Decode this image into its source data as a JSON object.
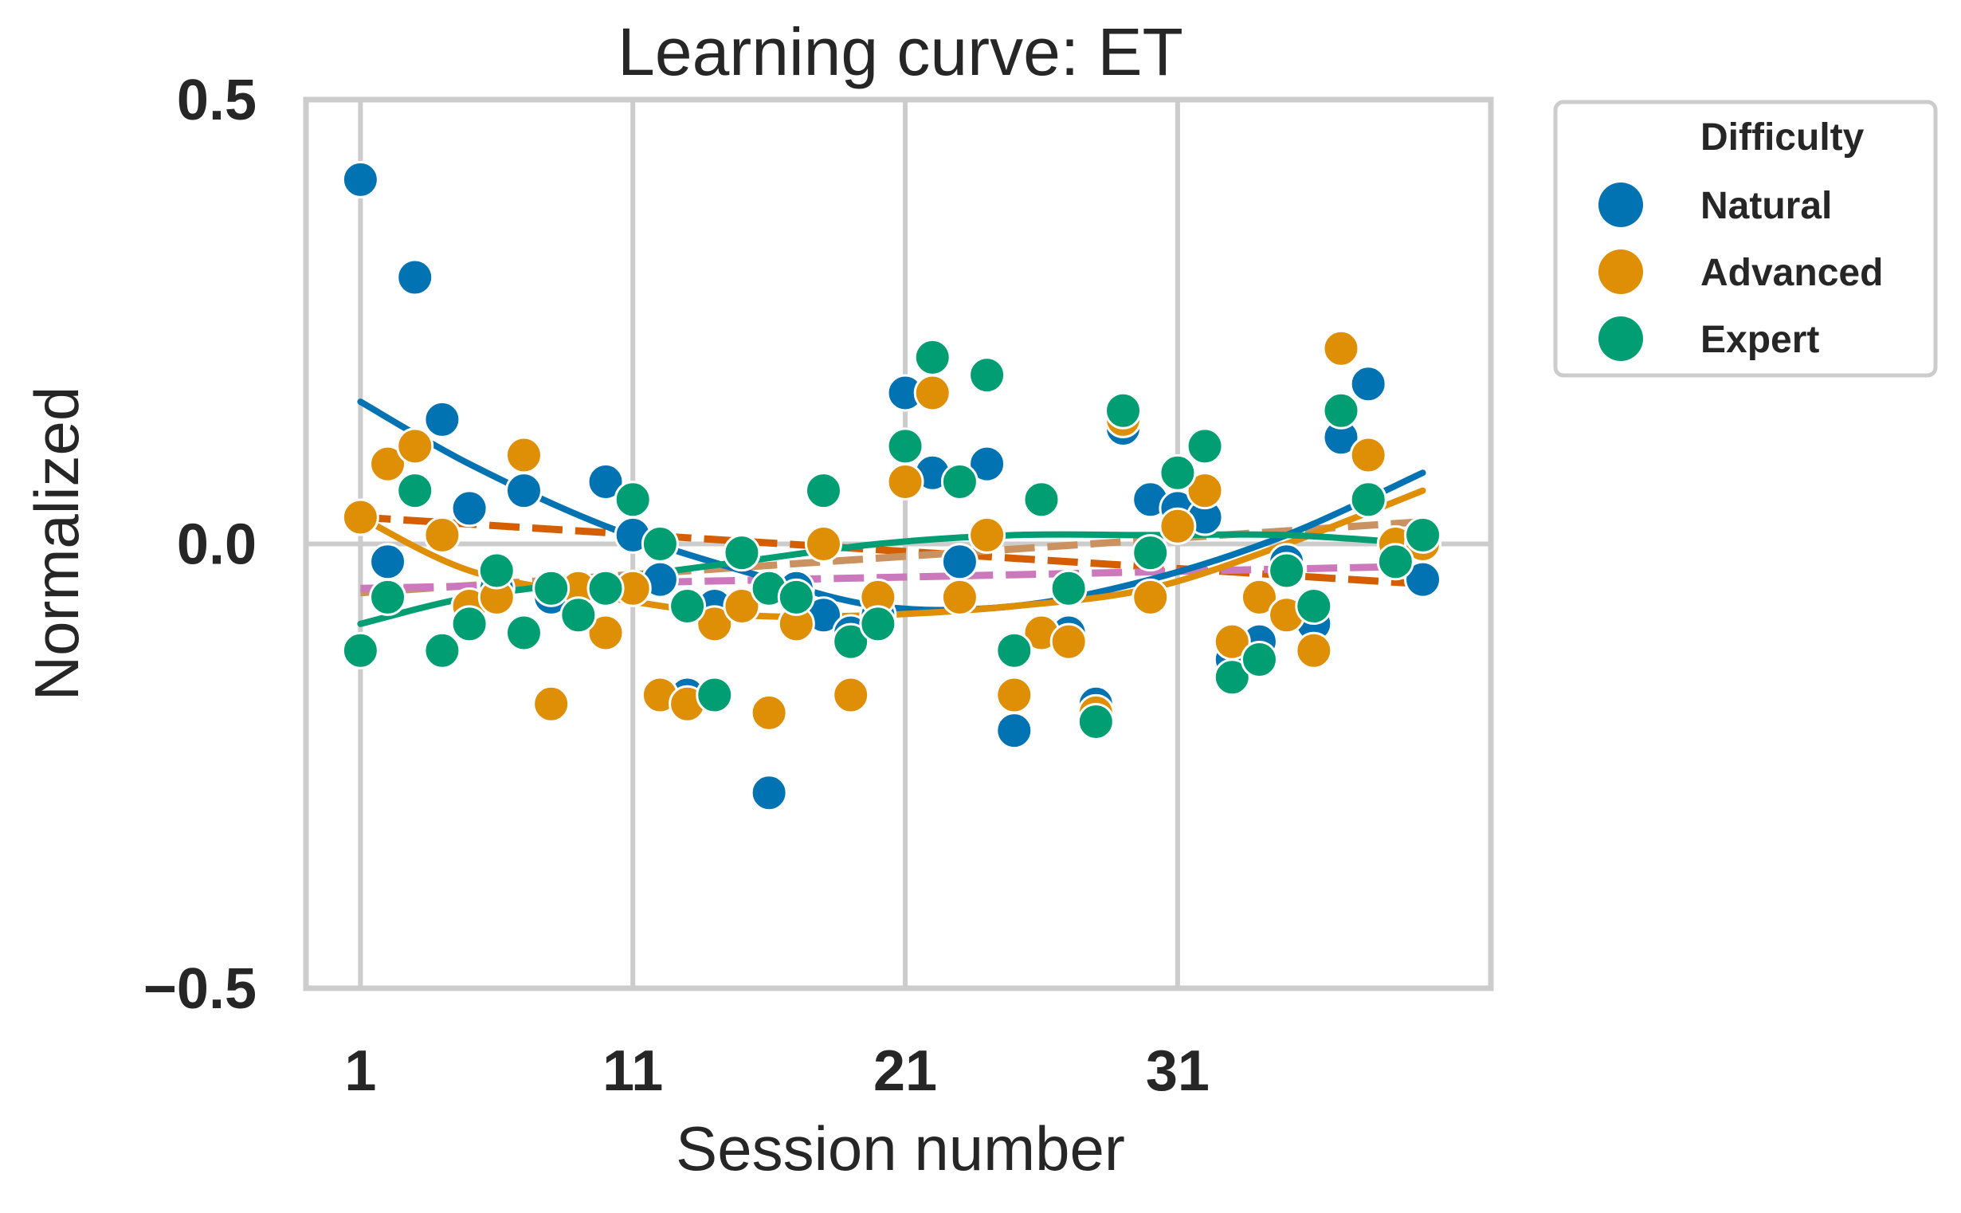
{
  "chart_data": {
    "type": "scatter",
    "title": "Learning curve: ET",
    "xlabel": "Session number",
    "ylabel": "Normalized",
    "xlim": [
      -1,
      42.5
    ],
    "ylim": [
      -0.5,
      0.5
    ],
    "xticks": [
      1,
      11,
      21,
      31
    ],
    "yticks": [
      {
        "value": 0.5,
        "label": "0.5"
      },
      {
        "value": 0.0,
        "label": "0.0"
      },
      {
        "value": -0.5,
        "label": "−0.5"
      }
    ],
    "grid": true,
    "legend": {
      "title": "Difficulty",
      "placement": "outside right, top",
      "entries": [
        "Natural",
        "Advanced",
        "Expert"
      ]
    },
    "series": [
      {
        "name": "Natural",
        "color": "#0173b2",
        "points": [
          [
            1,
            0.41
          ],
          [
            2,
            -0.02
          ],
          [
            3,
            0.3
          ],
          [
            4,
            0.14
          ],
          [
            5,
            0.04
          ],
          [
            6,
            -0.05
          ],
          [
            7,
            0.06
          ],
          [
            8,
            -0.06
          ],
          [
            9,
            -0.05
          ],
          [
            10,
            0.07
          ],
          [
            11,
            0.01
          ],
          [
            12,
            -0.04
          ],
          [
            13,
            -0.17
          ],
          [
            14,
            -0.07
          ],
          [
            15,
            -0.01
          ],
          [
            16,
            -0.28
          ],
          [
            17,
            -0.05
          ],
          [
            18,
            -0.08
          ],
          [
            19,
            -0.1
          ],
          [
            20,
            -0.08
          ],
          [
            21,
            0.17
          ],
          [
            22,
            0.08
          ],
          [
            23,
            -0.02
          ],
          [
            24,
            0.09
          ],
          [
            25,
            -0.21
          ],
          [
            26,
            -0.1
          ],
          [
            27,
            -0.1
          ],
          [
            28,
            -0.18
          ],
          [
            29,
            0.13
          ],
          [
            30,
            0.05
          ],
          [
            31,
            0.04
          ],
          [
            32,
            0.03
          ],
          [
            33,
            -0.13
          ],
          [
            34,
            -0.11
          ],
          [
            35,
            -0.02
          ],
          [
            36,
            -0.09
          ],
          [
            37,
            0.12
          ],
          [
            38,
            0.18
          ],
          [
            39,
            0.0
          ],
          [
            40,
            -0.04
          ]
        ],
        "trend": [
          [
            1,
            0.16
          ],
          [
            5,
            0.09
          ],
          [
            10,
            0.02
          ],
          [
            15,
            -0.03
          ],
          [
            20,
            -0.07
          ],
          [
            25,
            -0.07
          ],
          [
            30,
            -0.04
          ],
          [
            35,
            0.01
          ],
          [
            40,
            0.08
          ]
        ]
      },
      {
        "name": "Advanced",
        "color": "#de8f05",
        "points": [
          [
            1,
            0.03
          ],
          [
            2,
            0.09
          ],
          [
            3,
            0.11
          ],
          [
            4,
            0.01
          ],
          [
            5,
            -0.07
          ],
          [
            6,
            -0.06
          ],
          [
            7,
            0.1
          ],
          [
            8,
            -0.18
          ],
          [
            9,
            -0.05
          ],
          [
            10,
            -0.1
          ],
          [
            11,
            -0.05
          ],
          [
            12,
            -0.17
          ],
          [
            13,
            -0.18
          ],
          [
            14,
            -0.09
          ],
          [
            15,
            -0.07
          ],
          [
            16,
            -0.19
          ],
          [
            17,
            -0.09
          ],
          [
            18,
            0.0
          ],
          [
            19,
            -0.17
          ],
          [
            20,
            -0.06
          ],
          [
            21,
            0.07
          ],
          [
            22,
            0.17
          ],
          [
            23,
            -0.06
          ],
          [
            24,
            0.01
          ],
          [
            25,
            -0.17
          ],
          [
            26,
            -0.1
          ],
          [
            27,
            -0.11
          ],
          [
            28,
            -0.19
          ],
          [
            29,
            0.14
          ],
          [
            30,
            -0.06
          ],
          [
            31,
            0.02
          ],
          [
            32,
            0.06
          ],
          [
            33,
            -0.11
          ],
          [
            34,
            -0.06
          ],
          [
            35,
            -0.08
          ],
          [
            36,
            -0.12
          ],
          [
            37,
            0.22
          ],
          [
            38,
            0.1
          ],
          [
            39,
            0.0
          ],
          [
            40,
            0.0
          ]
        ],
        "trend": [
          [
            1,
            0.03
          ],
          [
            5,
            -0.03
          ],
          [
            10,
            -0.06
          ],
          [
            15,
            -0.08
          ],
          [
            20,
            -0.08
          ],
          [
            25,
            -0.07
          ],
          [
            30,
            -0.05
          ],
          [
            35,
            0.0
          ],
          [
            40,
            0.06
          ]
        ]
      },
      {
        "name": "Expert",
        "color": "#029e73",
        "points": [
          [
            1,
            -0.12
          ],
          [
            2,
            -0.06
          ],
          [
            3,
            0.06
          ],
          [
            4,
            -0.12
          ],
          [
            5,
            -0.09
          ],
          [
            6,
            -0.03
          ],
          [
            7,
            -0.1
          ],
          [
            8,
            -0.05
          ],
          [
            9,
            -0.08
          ],
          [
            10,
            -0.05
          ],
          [
            11,
            0.05
          ],
          [
            12,
            0.0
          ],
          [
            13,
            -0.07
          ],
          [
            14,
            -0.17
          ],
          [
            15,
            -0.01
          ],
          [
            16,
            -0.05
          ],
          [
            17,
            -0.06
          ],
          [
            18,
            0.06
          ],
          [
            19,
            -0.11
          ],
          [
            20,
            -0.09
          ],
          [
            21,
            0.11
          ],
          [
            22,
            0.21
          ],
          [
            23,
            0.07
          ],
          [
            24,
            0.19
          ],
          [
            25,
            -0.12
          ],
          [
            26,
            0.05
          ],
          [
            27,
            -0.05
          ],
          [
            28,
            -0.2
          ],
          [
            29,
            0.15
          ],
          [
            30,
            -0.01
          ],
          [
            31,
            0.08
          ],
          [
            32,
            0.11
          ],
          [
            33,
            -0.15
          ],
          [
            34,
            -0.13
          ],
          [
            35,
            -0.03
          ],
          [
            36,
            -0.07
          ],
          [
            37,
            0.15
          ],
          [
            38,
            0.05
          ],
          [
            39,
            -0.02
          ],
          [
            40,
            0.01
          ]
        ],
        "trend": [
          [
            1,
            -0.09
          ],
          [
            5,
            -0.06
          ],
          [
            10,
            -0.04
          ],
          [
            15,
            -0.02
          ],
          [
            20,
            0.0
          ],
          [
            25,
            0.01
          ],
          [
            30,
            0.01
          ],
          [
            35,
            0.01
          ],
          [
            40,
            0.0
          ]
        ]
      }
    ],
    "dashed_fits": [
      {
        "color": "#d55e00",
        "points": [
          [
            1,
            0.03
          ],
          [
            40,
            -0.045
          ]
        ]
      },
      {
        "color": "#ca9161",
        "points": [
          [
            1,
            -0.055
          ],
          [
            40,
            0.025
          ]
        ]
      },
      {
        "color": "#cc78bc",
        "points": [
          [
            1,
            -0.05
          ],
          [
            40,
            -0.025
          ]
        ]
      }
    ]
  }
}
